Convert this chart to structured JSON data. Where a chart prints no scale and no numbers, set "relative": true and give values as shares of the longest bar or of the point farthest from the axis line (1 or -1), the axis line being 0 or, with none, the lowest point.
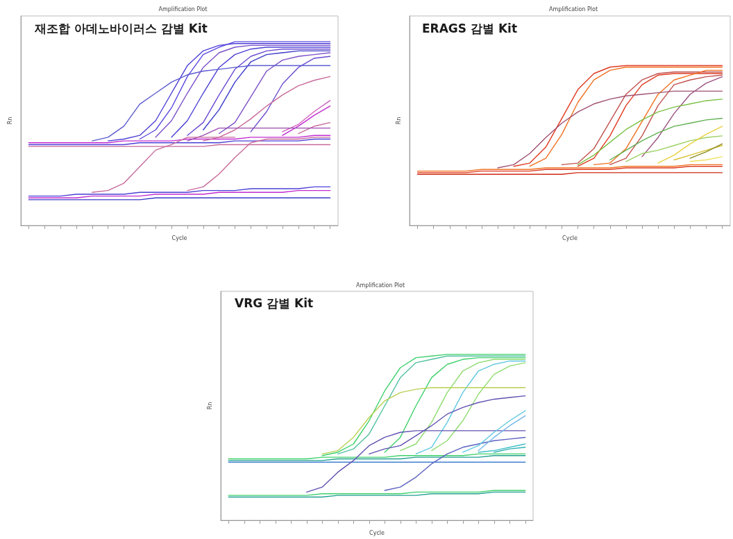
{
  "chart_data": [
    {
      "type": "line",
      "relative": true,
      "title": "Amplification Plot",
      "xlabel": "Cycle",
      "ylabel": "Rn",
      "annotations": [
        "재조합 아데노바이러스 감별 Kit"
      ],
      "categories": [
        null,
        null,
        null,
        null,
        null,
        null,
        null,
        null,
        null,
        null,
        null,
        null,
        null,
        null,
        null,
        null,
        null,
        null,
        null,
        null
      ],
      "series": [
        {
          "color": "#4b3fd6",
          "values": [
            0.44,
            0.44,
            0.44,
            0.44,
            0.44,
            0.44,
            0.44,
            0.45,
            0.45,
            0.45,
            0.45,
            0.45,
            0.45,
            0.46,
            0.46,
            0.46,
            0.46,
            0.46,
            0.47,
            0.47
          ]
        },
        {
          "color": "#c02bd0",
          "values": [
            0.45,
            0.45,
            0.45,
            0.45,
            0.45,
            0.45,
            0.46,
            0.46,
            0.46,
            0.46,
            0.47,
            0.47,
            0.47,
            0.47,
            0.48,
            0.48,
            0.48,
            0.48,
            0.49,
            0.49
          ]
        },
        {
          "color": "#c86a9a",
          "values": [
            0.43,
            0.43,
            0.43,
            0.43,
            0.43,
            0.43,
            0.43,
            0.43,
            0.43,
            0.43,
            0.43,
            0.43,
            0.44,
            0.44,
            0.44,
            0.44,
            0.44,
            0.44,
            0.44,
            0.44
          ]
        },
        {
          "color": "#4b3fd6",
          "values": [
            null,
            null,
            null,
            null,
            null,
            0.46,
            0.47,
            0.49,
            0.57,
            0.72,
            0.87,
            0.95,
            0.98,
            0.99,
            0.99,
            0.99,
            0.99,
            0.99,
            0.99,
            0.99
          ]
        },
        {
          "color": "#5a48e0",
          "values": [
            null,
            null,
            null,
            null,
            null,
            null,
            null,
            0.47,
            0.52,
            0.64,
            0.81,
            0.93,
            0.97,
            1,
            1,
            1,
            1,
            1,
            1,
            1
          ]
        },
        {
          "color": "#7b4fc8",
          "values": [
            null,
            null,
            null,
            null,
            null,
            null,
            null,
            null,
            0.48,
            0.57,
            0.72,
            0.86,
            0.94,
            0.97,
            0.98,
            0.98,
            0.98,
            0.98,
            0.98,
            0.98
          ]
        },
        {
          "color": "#4b3fd6",
          "values": [
            null,
            null,
            null,
            null,
            null,
            null,
            null,
            null,
            null,
            0.48,
            0.57,
            0.72,
            0.86,
            0.93,
            0.96,
            0.97,
            0.97,
            0.97,
            0.97,
            0.97
          ]
        },
        {
          "color": "#6a4ad0",
          "values": [
            null,
            null,
            null,
            null,
            null,
            null,
            null,
            null,
            null,
            null,
            0.49,
            0.56,
            0.71,
            0.85,
            0.92,
            0.95,
            0.96,
            0.96,
            0.96,
            0.96
          ]
        },
        {
          "color": "#3a3ac8",
          "values": [
            null,
            null,
            null,
            null,
            null,
            null,
            null,
            null,
            null,
            null,
            null,
            0.52,
            0.63,
            0.78,
            0.89,
            0.93,
            0.94,
            0.95,
            0.95,
            0.95
          ]
        },
        {
          "color": "#7b4fc8",
          "values": [
            null,
            null,
            null,
            null,
            null,
            null,
            null,
            null,
            null,
            null,
            null,
            null,
            0.5,
            0.56,
            0.7,
            0.84,
            0.9,
            0.92,
            0.93,
            0.94
          ]
        },
        {
          "color": "#6a4ad0",
          "values": [
            null,
            null,
            null,
            null,
            null,
            null,
            null,
            null,
            null,
            null,
            null,
            null,
            null,
            null,
            0.51,
            0.62,
            0.77,
            0.86,
            0.91,
            0.92
          ]
        },
        {
          "color": "#5a5ad0",
          "values": [
            null,
            null,
            null,
            null,
            0.46,
            0.48,
            0.54,
            0.66,
            0.72,
            0.78,
            0.82,
            0.84,
            0.85,
            0.86,
            0.87,
            0.87,
            0.87,
            0.87,
            0.87,
            0.87
          ]
        },
        {
          "color": "#c86a9a",
          "values": [
            null,
            null,
            null,
            null,
            null,
            null,
            null,
            null,
            null,
            null,
            null,
            0.46,
            0.48,
            0.52,
            0.58,
            0.65,
            0.71,
            0.76,
            0.79,
            0.81
          ]
        },
        {
          "color": "#d060c0",
          "values": [
            null,
            null,
            null,
            null,
            null,
            null,
            null,
            null,
            null,
            null,
            null,
            null,
            null,
            null,
            null,
            null,
            0.51,
            0.55,
            0.62,
            0.68
          ]
        },
        {
          "color": "#c02bd0",
          "values": [
            null,
            null,
            null,
            null,
            null,
            null,
            null,
            null,
            null,
            null,
            null,
            null,
            null,
            null,
            null,
            null,
            0.49,
            0.54,
            0.6,
            0.65
          ]
        },
        {
          "color": "#c86a9a",
          "values": [
            null,
            null,
            null,
            null,
            null,
            null,
            null,
            null,
            null,
            null,
            null,
            null,
            null,
            null,
            null,
            null,
            null,
            0.5,
            0.54,
            0.56
          ]
        },
        {
          "color": "#9a4ab0",
          "values": [
            null,
            null,
            null,
            null,
            null,
            null,
            null,
            null,
            null,
            null,
            0.46,
            0.49,
            0.53,
            0.53,
            0.53,
            0.53,
            0.53,
            0.53,
            0.53,
            0.53
          ]
        },
        {
          "color": "#4b3fd6",
          "values": [
            0.16,
            0.16,
            0.16,
            0.17,
            0.17,
            0.17,
            0.17,
            0.18,
            0.18,
            0.18,
            0.18,
            0.19,
            0.19,
            0.19,
            0.2,
            0.2,
            0.2,
            0.2,
            0.21,
            0.21
          ]
        },
        {
          "color": "#c02bd0",
          "values": [
            0.15,
            0.15,
            0.15,
            0.15,
            0.16,
            0.16,
            0.16,
            0.16,
            0.17,
            0.17,
            0.17,
            0.17,
            0.18,
            0.18,
            0.18,
            0.18,
            0.18,
            0.19,
            0.19,
            0.19
          ]
        },
        {
          "color": "#3a3ac8",
          "values": [
            0.14,
            0.14,
            0.14,
            0.14,
            0.14,
            0.14,
            0.14,
            0.14,
            0.15,
            0.15,
            0.15,
            0.15,
            0.15,
            0.15,
            0.15,
            0.15,
            0.15,
            0.15,
            0.15,
            0.15
          ]
        },
        {
          "color": "#c86a9a",
          "values": [
            null,
            null,
            null,
            null,
            0.18,
            0.19,
            0.23,
            0.32,
            0.41,
            0.44,
            0.48,
            0.48,
            0.48,
            0.48,
            null,
            null,
            null,
            null,
            null,
            null
          ]
        },
        {
          "color": "#c86a9a",
          "values": [
            null,
            null,
            null,
            null,
            null,
            null,
            null,
            null,
            null,
            null,
            0.19,
            0.21,
            0.28,
            0.37,
            0.45,
            0.47,
            0.47,
            0.47,
            0.48,
            0.48
          ]
        }
      ]
    },
    {
      "type": "line",
      "relative": true,
      "title": "Amplification Plot",
      "xlabel": "Cycle",
      "ylabel": "Rn",
      "annotations": [
        "ERAGS 감별 Kit"
      ],
      "categories": [
        null,
        null,
        null,
        null,
        null,
        null,
        null,
        null,
        null,
        null,
        null,
        null,
        null,
        null,
        null,
        null,
        null,
        null,
        null,
        null
      ],
      "series": [
        {
          "color": "#e03a20",
          "values": [
            0.33,
            0.33,
            0.33,
            0.33,
            0.34,
            0.34,
            0.34,
            0.34,
            0.35,
            0.35,
            0.35,
            0.35,
            0.35,
            0.36,
            0.36,
            0.36,
            0.36,
            0.37,
            0.37,
            0.37
          ]
        },
        {
          "color": "#f07020",
          "values": [
            0.34,
            0.34,
            0.34,
            0.34,
            0.35,
            0.35,
            0.35,
            0.35,
            0.36,
            0.36,
            0.36,
            0.36,
            0.36,
            0.37,
            0.37,
            0.37,
            0.37,
            0.38,
            0.38,
            0.38
          ]
        },
        {
          "color": "#d02a10",
          "values": [
            0.32,
            0.32,
            0.32,
            0.32,
            0.32,
            0.32,
            0.32,
            0.32,
            0.32,
            0.32,
            0.33,
            0.33,
            0.33,
            0.33,
            0.33,
            0.33,
            0.33,
            0.33,
            0.33,
            0.33
          ]
        },
        {
          "color": "#e03a20",
          "values": [
            null,
            null,
            null,
            null,
            null,
            null,
            0.37,
            0.39,
            0.49,
            0.67,
            0.85,
            0.95,
            0.99,
            1,
            1,
            1,
            1,
            1,
            1,
            1
          ]
        },
        {
          "color": "#f07020",
          "values": [
            null,
            null,
            null,
            null,
            null,
            null,
            null,
            0.37,
            0.42,
            0.57,
            0.77,
            0.91,
            0.97,
            0.99,
            0.99,
            0.99,
            0.99,
            0.99,
            0.99,
            0.99
          ]
        },
        {
          "color": "#c0504d",
          "values": [
            null,
            null,
            null,
            null,
            null,
            null,
            null,
            null,
            null,
            0.38,
            0.39,
            0.48,
            0.65,
            0.82,
            0.91,
            0.95,
            0.96,
            0.96,
            0.96,
            0.96
          ]
        },
        {
          "color": "#e03a20",
          "values": [
            null,
            null,
            null,
            null,
            null,
            null,
            null,
            null,
            null,
            null,
            0.37,
            0.42,
            0.56,
            0.75,
            0.88,
            0.94,
            0.95,
            0.95,
            0.95,
            0.95
          ]
        },
        {
          "color": "#f07020",
          "values": [
            null,
            null,
            null,
            null,
            null,
            null,
            null,
            null,
            null,
            null,
            null,
            0.38,
            0.39,
            0.48,
            0.65,
            0.82,
            0.91,
            0.94,
            0.97,
            0.97
          ]
        },
        {
          "color": "#c0504d",
          "values": [
            null,
            null,
            null,
            null,
            null,
            null,
            null,
            null,
            null,
            null,
            null,
            null,
            0.38,
            0.42,
            0.56,
            0.75,
            0.88,
            0.91,
            0.93,
            0.94
          ]
        },
        {
          "color": "#a05070",
          "values": [
            null,
            null,
            null,
            null,
            null,
            0.36,
            0.38,
            0.45,
            0.55,
            0.64,
            0.71,
            0.76,
            0.79,
            0.81,
            0.82,
            0.83,
            0.84,
            0.84,
            0.84,
            0.84
          ]
        },
        {
          "color": "#9a5080",
          "values": [
            null,
            null,
            null,
            null,
            null,
            null,
            null,
            null,
            null,
            null,
            null,
            null,
            null,
            null,
            0.43,
            0.55,
            0.7,
            0.82,
            0.89,
            0.93
          ]
        },
        {
          "color": "#7ac043",
          "values": [
            null,
            null,
            null,
            null,
            null,
            null,
            null,
            null,
            null,
            null,
            0.38,
            0.44,
            0.52,
            0.6,
            0.66,
            0.71,
            0.74,
            0.76,
            0.78,
            0.79
          ]
        },
        {
          "color": "#60b050",
          "values": [
            null,
            null,
            null,
            null,
            null,
            null,
            null,
            null,
            null,
            null,
            null,
            null,
            0.41,
            0.47,
            0.53,
            0.58,
            0.62,
            0.64,
            0.66,
            0.67
          ]
        },
        {
          "color": "#9ad060",
          "values": [
            null,
            null,
            null,
            null,
            null,
            null,
            null,
            null,
            null,
            null,
            null,
            null,
            null,
            0.4,
            0.45,
            0.47,
            0.5,
            0.53,
            0.55,
            0.56
          ]
        },
        {
          "color": "#e8d040",
          "values": [
            null,
            null,
            null,
            null,
            null,
            null,
            null,
            null,
            null,
            null,
            null,
            null,
            null,
            null,
            null,
            0.39,
            0.44,
            0.51,
            0.57,
            0.62
          ]
        },
        {
          "color": "#d8c030",
          "values": [
            null,
            null,
            null,
            null,
            null,
            null,
            null,
            null,
            null,
            null,
            null,
            null,
            null,
            null,
            null,
            null,
            0.41,
            0.44,
            0.47,
            0.5
          ]
        },
        {
          "color": "#8a8a20",
          "values": [
            null,
            null,
            null,
            null,
            null,
            null,
            null,
            null,
            null,
            null,
            null,
            null,
            null,
            null,
            null,
            null,
            null,
            0.42,
            0.46,
            0.51
          ]
        },
        {
          "color": "#f0e060",
          "values": [
            null,
            null,
            null,
            null,
            null,
            null,
            null,
            null,
            null,
            null,
            null,
            null,
            null,
            null,
            null,
            null,
            null,
            0.4,
            0.41,
            0.43
          ]
        }
      ]
    },
    {
      "type": "line",
      "relative": true,
      "title": "Amplification Plot",
      "xlabel": "Cycle",
      "ylabel": "Rn",
      "annotations": [
        "VRG 감별 Kit"
      ],
      "categories": [
        null,
        null,
        null,
        null,
        null,
        null,
        null,
        null,
        null,
        null,
        null,
        null,
        null,
        null,
        null,
        null,
        null,
        null,
        null,
        null
      ],
      "series": [
        {
          "color": "#3ed06a",
          "values": [
            0.37,
            0.37,
            0.37,
            0.37,
            0.37,
            0.37,
            0.38,
            0.38,
            0.38,
            0.38,
            0.38,
            0.39,
            0.39,
            0.39,
            0.39,
            0.39,
            0.4,
            0.4,
            0.4,
            0.4
          ]
        },
        {
          "color": "#20a090",
          "values": [
            0.36,
            0.36,
            0.36,
            0.36,
            0.36,
            0.36,
            0.36,
            0.37,
            0.37,
            0.37,
            0.37,
            0.37,
            0.38,
            0.38,
            0.38,
            0.38,
            0.38,
            0.39,
            0.39,
            0.39
          ]
        },
        {
          "color": "#4080d0",
          "values": [
            0.35,
            0.35,
            0.35,
            0.35,
            0.35,
            0.35,
            0.35,
            0.35,
            0.35,
            0.35,
            0.35,
            0.35,
            0.35,
            0.35,
            0.35,
            0.35,
            0.35,
            0.35,
            0.35,
            0.35
          ]
        },
        {
          "color": "#3ed06a",
          "values": [
            null,
            null,
            null,
            null,
            null,
            null,
            0.39,
            0.41,
            0.46,
            0.6,
            0.78,
            0.92,
            0.98,
            0.99,
            1,
            1,
            1,
            1,
            1,
            1
          ]
        },
        {
          "color": "#50c0a0",
          "values": [
            null,
            null,
            null,
            null,
            null,
            null,
            null,
            0.4,
            0.43,
            0.52,
            0.69,
            0.86,
            0.95,
            0.97,
            0.99,
            0.99,
            0.99,
            0.99,
            0.99,
            0.99
          ]
        },
        {
          "color": "#3ed06a",
          "values": [
            null,
            null,
            null,
            null,
            null,
            null,
            null,
            null,
            null,
            null,
            0.41,
            0.5,
            0.69,
            0.86,
            0.94,
            0.97,
            0.98,
            0.98,
            0.98,
            0.98
          ]
        },
        {
          "color": "#8fdc70",
          "values": [
            null,
            null,
            null,
            null,
            null,
            null,
            null,
            null,
            null,
            null,
            null,
            0.42,
            0.46,
            0.59,
            0.77,
            0.9,
            0.95,
            0.97,
            0.97,
            0.97
          ]
        },
        {
          "color": "#60c8e0",
          "values": [
            null,
            null,
            null,
            null,
            null,
            null,
            null,
            null,
            null,
            null,
            null,
            null,
            0.4,
            0.44,
            0.59,
            0.77,
            0.9,
            0.94,
            0.96,
            0.96
          ]
        },
        {
          "color": "#8fdc70",
          "values": [
            null,
            null,
            null,
            null,
            null,
            null,
            null,
            null,
            null,
            null,
            null,
            null,
            null,
            0.42,
            0.48,
            0.6,
            0.76,
            0.88,
            0.93,
            0.95
          ]
        },
        {
          "color": "#b8d050",
          "values": [
            null,
            null,
            null,
            null,
            null,
            null,
            0.4,
            0.42,
            0.5,
            0.62,
            0.72,
            0.77,
            0.79,
            0.8,
            0.8,
            0.8,
            0.8,
            0.8,
            0.8,
            0.8
          ]
        },
        {
          "color": "#6050b0",
          "values": [
            null,
            null,
            null,
            null,
            null,
            null,
            null,
            null,
            null,
            0.4,
            0.43,
            0.45,
            0.51,
            0.57,
            0.64,
            0.68,
            0.71,
            0.73,
            0.74,
            0.75
          ]
        },
        {
          "color": "#6050b0",
          "values": [
            null,
            null,
            null,
            null,
            null,
            0.17,
            0.2,
            0.29,
            0.36,
            0.45,
            0.5,
            0.53,
            0.54,
            0.54,
            0.54,
            0.54,
            0.54,
            0.54,
            0.54,
            0.54
          ]
        },
        {
          "color": "#5a60c0",
          "values": [
            null,
            null,
            null,
            null,
            null,
            null,
            null,
            null,
            null,
            null,
            0.18,
            0.2,
            0.26,
            0.34,
            0.4,
            0.44,
            0.46,
            0.48,
            0.49,
            0.5
          ]
        },
        {
          "color": "#60c8e0",
          "values": [
            null,
            null,
            null,
            null,
            null,
            null,
            null,
            null,
            null,
            null,
            null,
            null,
            null,
            null,
            null,
            0.41,
            0.45,
            0.53,
            0.6,
            0.66
          ]
        },
        {
          "color": "#70b8e8",
          "values": [
            null,
            null,
            null,
            null,
            null,
            null,
            null,
            null,
            null,
            null,
            null,
            null,
            null,
            null,
            null,
            null,
            0.42,
            0.5,
            0.57,
            0.63
          ]
        },
        {
          "color": "#40c0c8",
          "values": [
            null,
            null,
            null,
            null,
            null,
            null,
            null,
            null,
            null,
            null,
            null,
            null,
            null,
            null,
            null,
            null,
            0.41,
            0.42,
            0.44,
            0.46
          ]
        },
        {
          "color": "#30b0b0",
          "values": [
            null,
            null,
            null,
            null,
            null,
            null,
            null,
            null,
            null,
            null,
            null,
            null,
            null,
            null,
            null,
            null,
            null,
            0.41,
            0.43,
            0.44
          ]
        },
        {
          "color": "#3ed06a",
          "values": [
            0.15,
            0.15,
            0.15,
            0.15,
            0.15,
            0.15,
            0.16,
            0.16,
            0.16,
            0.16,
            0.16,
            0.16,
            0.17,
            0.17,
            0.17,
            0.17,
            0.17,
            0.18,
            0.18,
            0.18
          ]
        },
        {
          "color": "#20a090",
          "values": [
            0.14,
            0.14,
            0.14,
            0.14,
            0.14,
            0.14,
            0.14,
            0.15,
            0.15,
            0.15,
            0.15,
            0.15,
            0.15,
            0.16,
            0.16,
            0.16,
            0.16,
            0.17,
            0.17,
            0.17
          ]
        }
      ]
    }
  ]
}
